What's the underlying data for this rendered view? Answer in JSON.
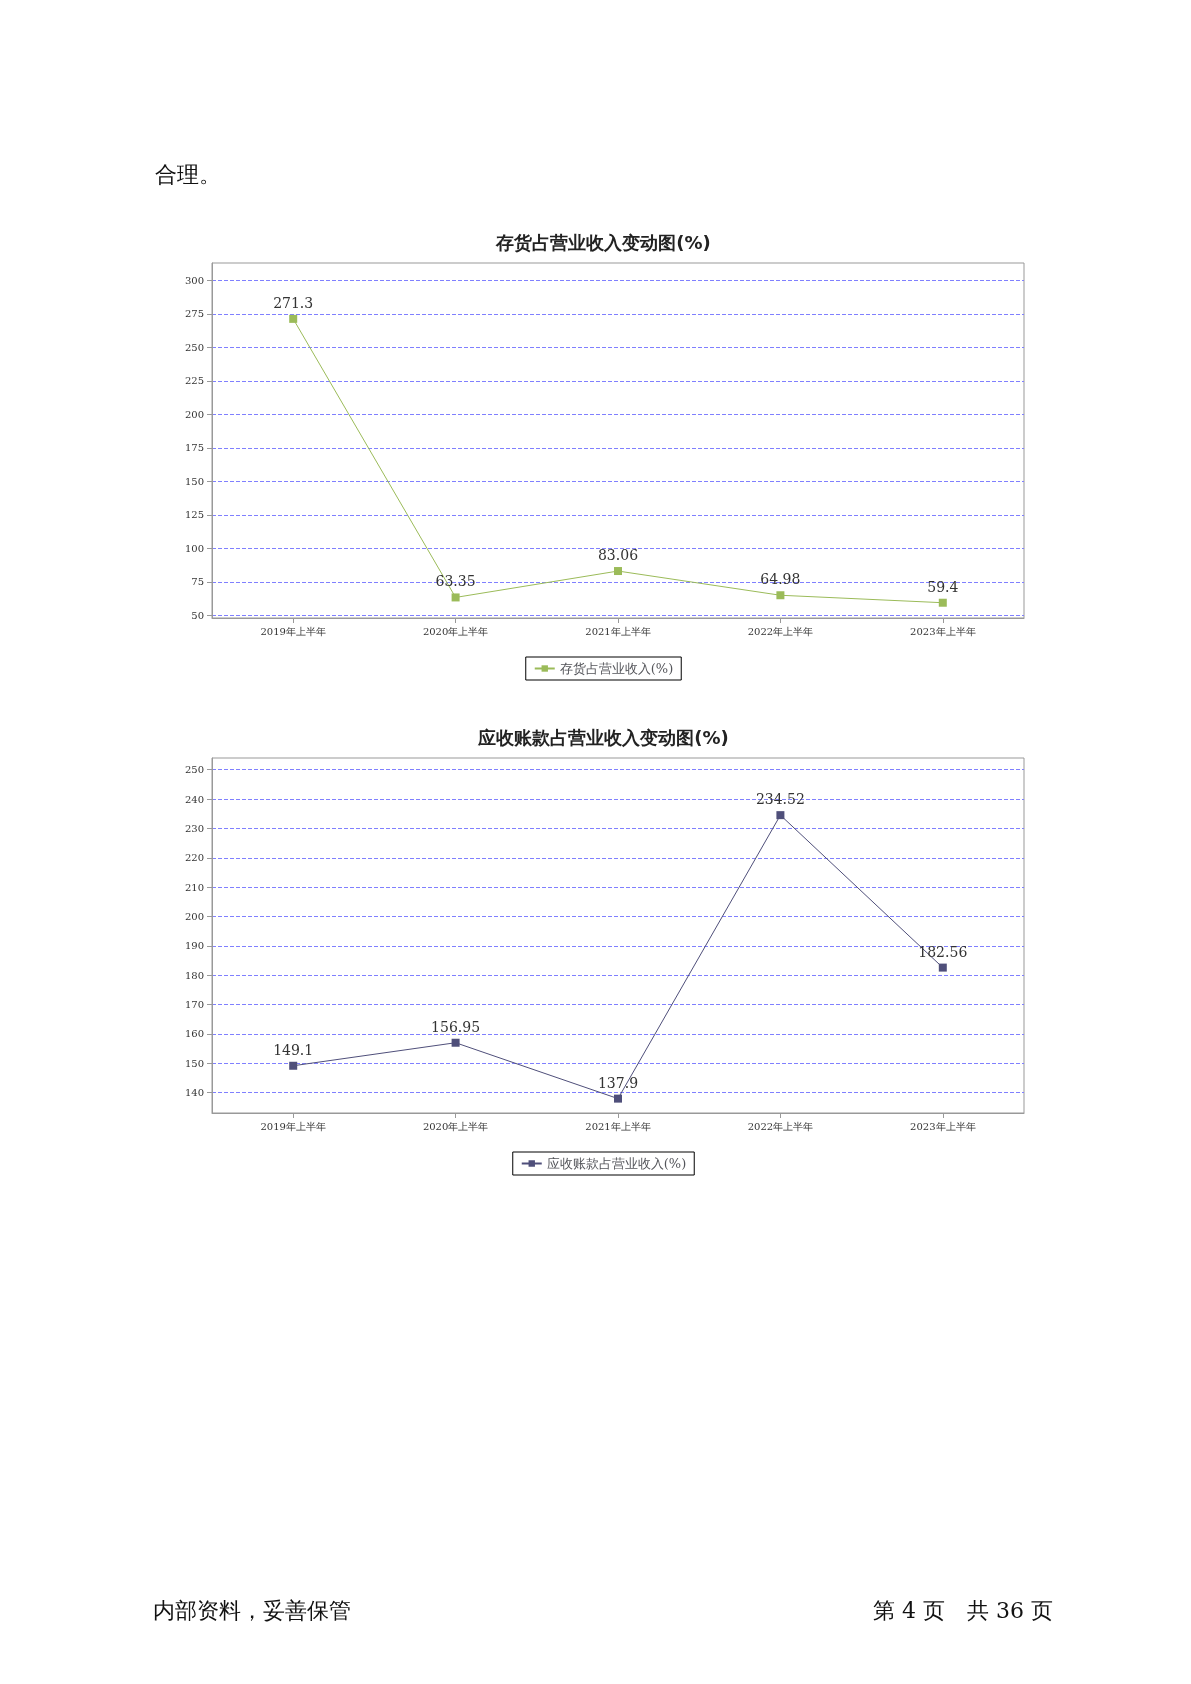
{
  "chart_data": [
    {
      "type": "line",
      "title": "存货占营业收入变动图(%)",
      "categories": [
        "2019年上半年",
        "2020年上半年",
        "2021年上半年",
        "2022年上半年",
        "2023年上半年"
      ],
      "series": [
        {
          "name": "存货占营业收入(%)",
          "color": "#9bbb59",
          "values": [
            271.3,
            63.35,
            83.06,
            64.98,
            59.4
          ]
        }
      ],
      "ylim": [
        48,
        313
      ],
      "yticks": [
        50,
        75,
        100,
        125,
        150,
        175,
        200,
        225,
        250,
        275,
        300
      ],
      "grid": "y",
      "legend": "bottom",
      "marker": "square",
      "line_style": "solid",
      "data_labels": true,
      "annotations": [
        "合理。"
      ]
    },
    {
      "type": "line",
      "title": "应收账款占营业收入变动图(%)",
      "categories": [
        "2019年上半年",
        "2020年上半年",
        "2021年上半年",
        "2022年上半年",
        "2023年上半年"
      ],
      "series": [
        {
          "name": "应收账款占营业收入(%)",
          "color": "#4f4f7a",
          "values": [
            149.1,
            156.95,
            137.9,
            234.52,
            182.56
          ]
        }
      ],
      "ylim": [
        133,
        254
      ],
      "yticks": [
        140,
        150,
        160,
        170,
        180,
        190,
        200,
        210,
        220,
        230,
        240,
        250
      ],
      "grid": "y",
      "legend": "bottom",
      "marker": "square",
      "line_style": "solid",
      "data_labels": true,
      "annotations": [
        "内部资料，妥善保管",
        "第 4 页　共 36 页"
      ]
    }
  ]
}
